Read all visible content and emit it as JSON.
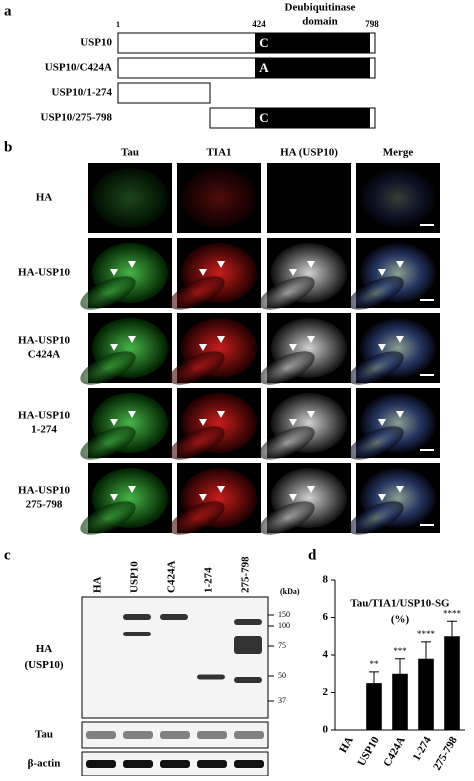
{
  "panel_a": {
    "label": "a",
    "domain_title": [
      "Deubiquitinase",
      "domain"
    ],
    "scale": [
      1,
      424,
      798
    ],
    "constructs": [
      {
        "name": "USP10",
        "residue": "C"
      },
      {
        "name": "USP10/C424A",
        "residue": "A"
      },
      {
        "name": "USP10/1-274"
      },
      {
        "name": "USP10/275-798",
        "residue": "C"
      }
    ]
  },
  "panel_b": {
    "label": "b",
    "columns": [
      "Tau",
      "TIA1",
      "HA (USP10)",
      "Merge"
    ],
    "rows": [
      [
        "HA"
      ],
      [
        "HA-USP10"
      ],
      [
        "HA-USP10",
        "C424A"
      ],
      [
        "HA-USP10",
        "1-274"
      ],
      [
        "HA-USP10",
        "275-798"
      ]
    ]
  },
  "panel_c": {
    "label": "c",
    "lanes": [
      "HA",
      "USP10",
      "C424A",
      "1-274",
      "275-798"
    ],
    "unit": "(kDa)",
    "markers": [
      150,
      100,
      75,
      50,
      37
    ],
    "blots": [
      [
        "HA",
        "(USP10)"
      ],
      [
        "Tau"
      ],
      [
        "β-actin"
      ]
    ]
  },
  "chart_data": {
    "type": "bar",
    "panel_label": "d",
    "title": "Tau/TIA1/USP10-SG",
    "subtitle": "(%)",
    "categories": [
      "HA",
      "USP10",
      "C424A",
      "1-274",
      "275-798"
    ],
    "values": [
      0,
      2.5,
      3.0,
      3.8,
      5.0
    ],
    "errors": [
      0,
      0.6,
      0.8,
      0.9,
      0.8
    ],
    "value_labels": [
      null,
      "**",
      "***",
      "****",
      "****"
    ],
    "ylim": [
      0,
      8
    ],
    "yticks": [
      0,
      2,
      4,
      6,
      8
    ],
    "color": "#000000"
  }
}
